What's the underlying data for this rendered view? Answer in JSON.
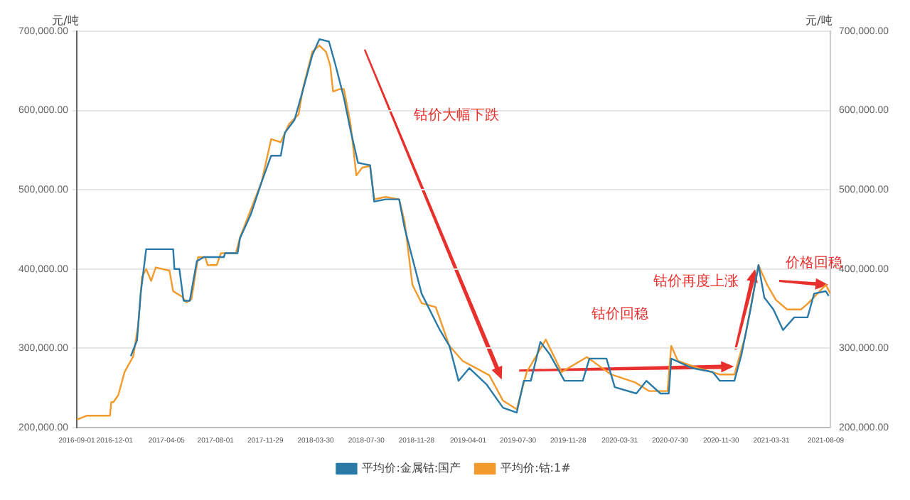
{
  "chart_data": {
    "type": "line",
    "ylabel": "元/吨",
    "y2label": "元/吨",
    "xlim": [
      "2016-09-01",
      "2021-08-20"
    ],
    "xticks": [
      "2016-09-01",
      "2016-12-01",
      "2017-04-05",
      "2017-08-01",
      "2017-11-29",
      "2018-03-30",
      "2018-07-30",
      "2018-11-28",
      "2019-04-01",
      "2019-07-30",
      "2019-11-28",
      "2020-03-31",
      "2020-07-30",
      "2020-11-30",
      "2021-03-31",
      "2021-08-09"
    ],
    "ylim": [
      200000,
      700000
    ],
    "yticks": [
      {
        "value": 200000,
        "label": "200,000.00"
      },
      {
        "value": 300000,
        "label": "300,000.00"
      },
      {
        "value": 400000,
        "label": "400,000.00"
      },
      {
        "value": 500000,
        "label": "500,000.00"
      },
      {
        "value": 600000,
        "label": "600,000.00"
      },
      {
        "value": 700000,
        "label": "700,000.00"
      }
    ],
    "y2lim": [
      200000,
      700000
    ],
    "y2ticks": [
      {
        "value": 200000,
        "label": "200,000.00"
      },
      {
        "value": 300000,
        "label": "300,000.00"
      },
      {
        "value": 400000,
        "label": "400,000.00"
      },
      {
        "value": 500000,
        "label": "500,000.00"
      },
      {
        "value": 600000,
        "label": "600,000.00"
      },
      {
        "value": 700000,
        "label": "700,000.00"
      }
    ],
    "grid": "y",
    "legend": "bottom",
    "marker": "none",
    "line_style": "solid",
    "annotations": [
      "钴价大幅下跌",
      "钴价回稳",
      {
        "text": "钴价再度上涨",
        "x": "2021-02-20",
        "y": 400000
      },
      {
        "text": "价格回稳",
        "x": "2021-08-15",
        "y": 380000
      }
    ],
    "series": [
      {
        "name": "平均价:金属钴:国产",
        "color": "#2a7aa8",
        "x": [
          "2017-01-09",
          "2017-01-24",
          "2017-02-02",
          "2017-02-15",
          "2017-04-21",
          "2017-04-24",
          "2017-05-06",
          "2017-05-16",
          "2017-05-31",
          "2017-06-17",
          "2017-07-04",
          "2017-08-21",
          "2017-08-24",
          "2017-09-23",
          "2017-09-29",
          "2017-10-25",
          "2017-11-20",
          "2017-12-13",
          "2018-01-05",
          "2018-01-15",
          "2018-02-07",
          "2018-02-27",
          "2018-03-22",
          "2018-04-08",
          "2018-05-01",
          "2018-05-17",
          "2018-06-06",
          "2018-06-22",
          "2018-07-10",
          "2018-08-08",
          "2018-08-18",
          "2018-09-14",
          "2018-10-17",
          "2018-10-30",
          "2018-12-10",
          "2019-01-23",
          "2019-02-15",
          "2019-03-09",
          "2019-04-04",
          "2019-05-16",
          "2019-06-24",
          "2019-07-27",
          "2019-08-13",
          "2019-08-30",
          "2019-09-22",
          "2019-10-15",
          "2019-11-19",
          "2020-01-02",
          "2020-01-18",
          "2020-02-28",
          "2020-03-19",
          "2020-05-10",
          "2020-06-03",
          "2020-07-07",
          "2020-07-27",
          "2020-08-02",
          "2020-09-21",
          "2020-11-10",
          "2020-11-27",
          "2021-01-01",
          "2021-01-18",
          "2021-02-08",
          "2021-02-28",
          "2021-03-14",
          "2021-04-05",
          "2021-04-28",
          "2021-05-25",
          "2021-06-26",
          "2021-07-12",
          "2021-08-09",
          "2021-08-16"
        ],
        "values": [
          290000,
          310000,
          370000,
          425000,
          425000,
          400000,
          400000,
          360000,
          360000,
          410000,
          415000,
          415000,
          420000,
          420000,
          439000,
          469000,
          510000,
          543000,
          543000,
          572000,
          588000,
          625000,
          670000,
          690000,
          687000,
          657000,
          616000,
          575000,
          534000,
          531000,
          485000,
          488000,
          488000,
          452000,
          369000,
          323000,
          303000,
          259000,
          275000,
          254000,
          225000,
          219000,
          259000,
          259000,
          308000,
          292000,
          259000,
          259000,
          287000,
          287000,
          251000,
          243000,
          259000,
          243000,
          243000,
          287000,
          275000,
          270000,
          259000,
          259000,
          292000,
          347000,
          405000,
          364000,
          349000,
          323000,
          339000,
          339000,
          369000,
          372000,
          366000
        ]
      },
      {
        "name": "平均价:钴:1#",
        "color": "#f39a2c",
        "x": [
          "2016-09-01",
          "2016-09-25",
          "2016-11-20",
          "2016-11-23",
          "2016-11-28",
          "2016-12-10",
          "2016-12-25",
          "2017-01-15",
          "2017-01-27",
          "2017-02-05",
          "2017-02-15",
          "2017-02-27",
          "2017-03-10",
          "2017-04-12",
          "2017-04-21",
          "2017-05-13",
          "2017-05-23",
          "2017-06-04",
          "2017-06-20",
          "2017-07-07",
          "2017-07-13",
          "2017-08-04",
          "2017-08-14",
          "2017-09-19",
          "2017-09-29",
          "2017-11-20",
          "2017-12-13",
          "2018-01-05",
          "2018-01-25",
          "2018-02-17",
          "2018-02-27",
          "2018-03-22",
          "2018-04-08",
          "2018-04-24",
          "2018-05-04",
          "2018-05-11",
          "2018-05-27",
          "2018-06-06",
          "2018-06-22",
          "2018-07-06",
          "2018-07-20",
          "2018-08-08",
          "2018-08-18",
          "2018-09-14",
          "2018-10-17",
          "2018-10-30",
          "2018-11-18",
          "2018-12-10",
          "2019-01-13",
          "2019-02-15",
          "2019-03-19",
          "2019-05-22",
          "2019-06-24",
          "2019-07-27",
          "2019-08-20",
          "2019-10-05",
          "2019-11-12",
          "2020-01-12",
          "2020-03-10",
          "2020-05-07",
          "2020-06-10",
          "2020-07-24",
          "2020-08-02",
          "2020-08-18",
          "2020-10-07",
          "2020-11-27",
          "2021-01-01",
          "2021-01-27",
          "2021-02-28",
          "2021-03-21",
          "2021-04-11",
          "2021-05-08",
          "2021-06-10",
          "2021-06-26",
          "2021-08-09",
          "2021-08-20"
        ],
        "values": [
          210000,
          215000,
          215000,
          232000,
          232000,
          241000,
          270000,
          290000,
          330000,
          390000,
          400000,
          385000,
          402000,
          398000,
          372000,
          365000,
          358000,
          362000,
          415000,
          415000,
          405000,
          405000,
          420000,
          420000,
          440000,
          510000,
          564000,
          560000,
          583000,
          595000,
          627000,
          674000,
          682000,
          674000,
          657000,
          624000,
          627000,
          627000,
          583000,
          518000,
          528000,
          530000,
          488000,
          491000,
          488000,
          460000,
          380000,
          357000,
          352000,
          303000,
          284000,
          266000,
          234000,
          223000,
          270000,
          311000,
          270000,
          289000,
          267000,
          257000,
          246000,
          246000,
          303000,
          284000,
          275000,
          267000,
          267000,
          315000,
          405000,
          380000,
          361000,
          349000,
          349000,
          356000,
          380000,
          369000
        ]
      }
    ]
  }
}
